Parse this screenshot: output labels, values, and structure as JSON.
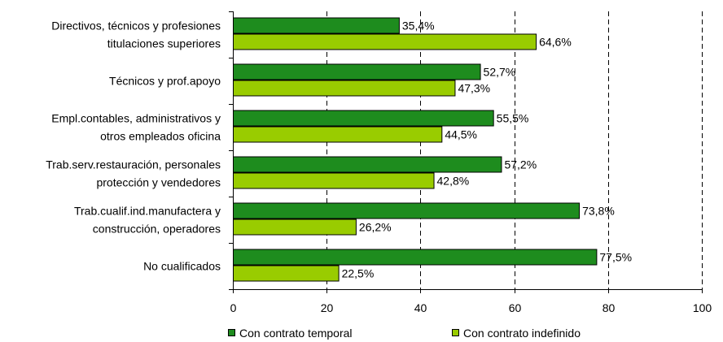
{
  "chart_data": {
    "type": "bar",
    "orientation": "horizontal",
    "categories": [
      [
        "Directivos, técnicos y profesiones",
        "titulaciones superiores"
      ],
      [
        "Técnicos y prof.apoyo"
      ],
      [
        "Empl.contables, administrativos y",
        "otros empleados oficina"
      ],
      [
        "Trab.serv.restauración, personales",
        "protección y vendedores"
      ],
      [
        "Trab.cualif.ind.manufactera y",
        "construcción, operadores"
      ],
      [
        "No cualificados"
      ]
    ],
    "series": [
      {
        "name": "Con contrato temporal",
        "color": "#1e8c1e",
        "values": [
          35.4,
          52.7,
          55.5,
          57.2,
          73.8,
          77.5
        ],
        "labels": [
          "35,4%",
          "52,7%",
          "55,5%",
          "57,2%",
          "73,8%",
          "77,5%"
        ]
      },
      {
        "name": "Con contrato indefinido",
        "color": "#99cc00",
        "values": [
          64.6,
          47.3,
          44.5,
          42.8,
          26.2,
          22.5
        ],
        "labels": [
          "64,6%",
          "47,3%",
          "44,5%",
          "42,8%",
          "26,2%",
          "22,5%"
        ]
      }
    ],
    "xlim": [
      0,
      100
    ],
    "xticks": [
      0,
      20,
      40,
      60,
      80,
      100
    ],
    "xtick_labels": [
      "0",
      "20",
      "40",
      "60",
      "80",
      "100"
    ],
    "grid": "vertical dashed",
    "legend_position": "bottom"
  }
}
